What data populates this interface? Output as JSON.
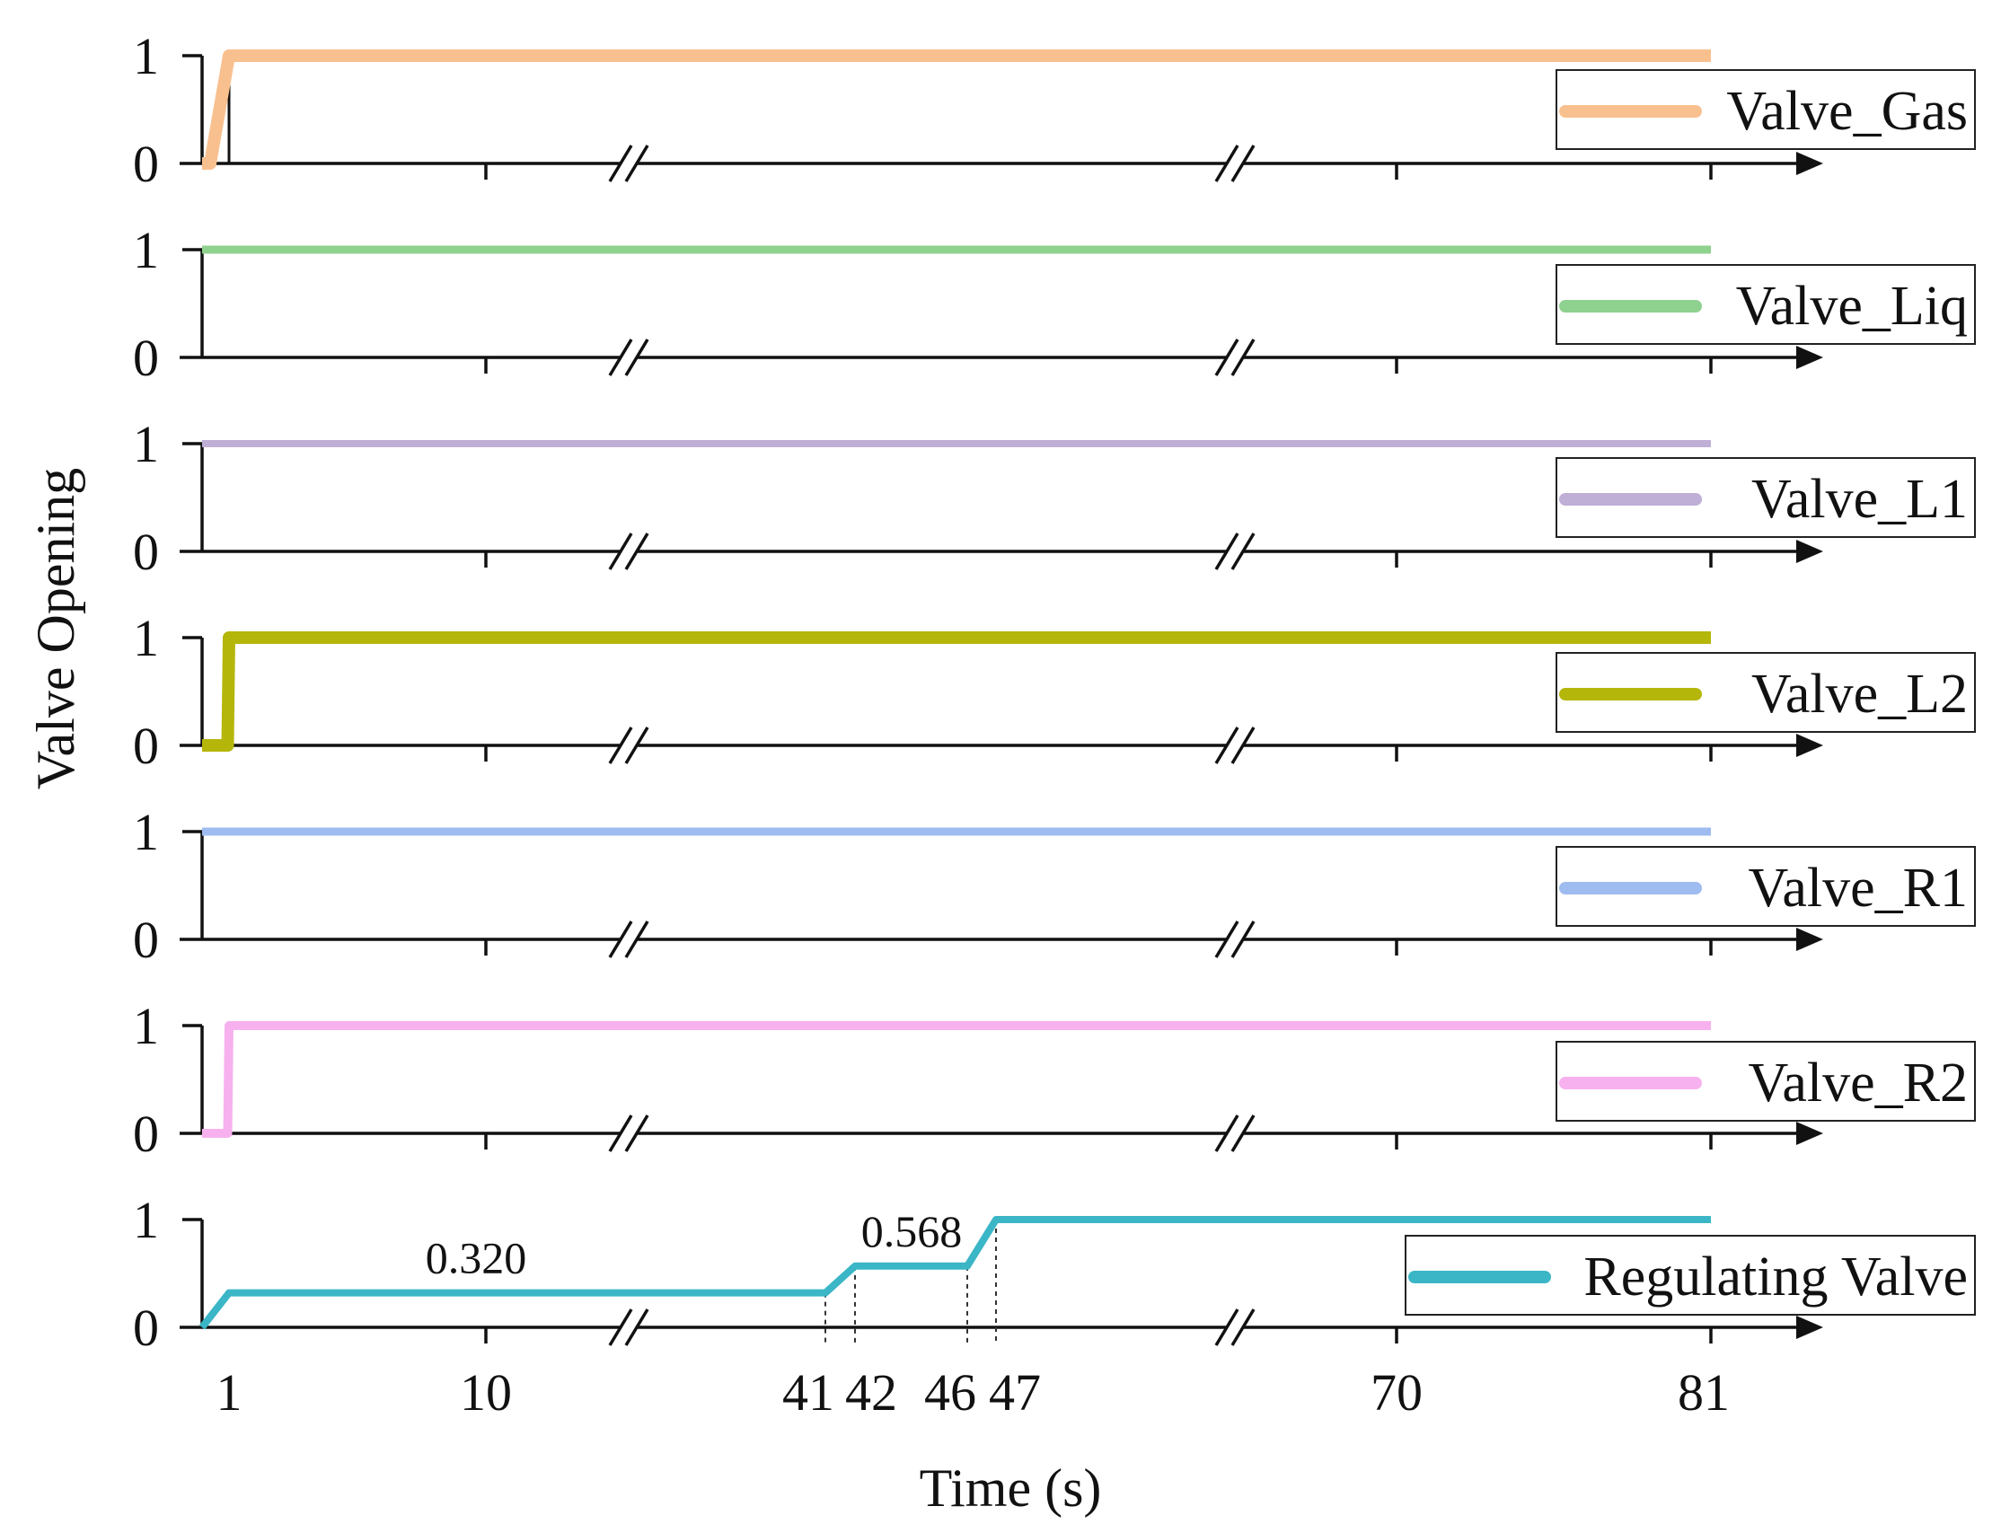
{
  "chart_data": {
    "type": "line",
    "ylabel": "Valve Opening",
    "xlabel": "Time (s)",
    "x_tick_labels": [
      "1",
      "10",
      "41",
      "42",
      "46",
      "47",
      "70",
      "81"
    ],
    "y_tick_labels": [
      "0",
      "1"
    ],
    "ylim": [
      0,
      1
    ],
    "xlim": [
      0,
      81
    ],
    "axis_breaks": [
      [
        10,
        41
      ],
      [
        47,
        70
      ]
    ],
    "series": [
      {
        "name": "Valve_Gas",
        "color": "#f9c08f",
        "x": [
          0,
          0.3,
          1,
          81
        ],
        "values": [
          0,
          0,
          1,
          1
        ]
      },
      {
        "name": "Valve_Liq",
        "color": "#8fd18f",
        "x": [
          0,
          81
        ],
        "values": [
          1,
          1
        ]
      },
      {
        "name": "Valve_L1",
        "color": "#bfaed6",
        "x": [
          0,
          81
        ],
        "values": [
          1,
          1
        ]
      },
      {
        "name": "Valve_L2",
        "color": "#b5b60a",
        "x": [
          0,
          0.95,
          1,
          81
        ],
        "values": [
          0,
          0,
          1,
          1
        ]
      },
      {
        "name": "Valve_R1",
        "color": "#9ebcf0",
        "x": [
          0,
          81
        ],
        "values": [
          1,
          1
        ]
      },
      {
        "name": "Valve_R2",
        "color": "#f7b1ee",
        "x": [
          0,
          0.95,
          1,
          81
        ],
        "values": [
          0,
          0,
          1,
          1
        ]
      },
      {
        "name": "Regulating Valve",
        "color": "#3bb6c6",
        "x": [
          0,
          1,
          41,
          42,
          46,
          47,
          81
        ],
        "values": [
          0,
          0.32,
          0.32,
          0.568,
          0.568,
          1,
          1
        ]
      }
    ],
    "annotations": [
      {
        "text": "0.320",
        "x": 10,
        "y": 0.32
      },
      {
        "text": "0.568",
        "x": 44,
        "y": 0.568
      }
    ],
    "guide_lines_at_x": [
      41,
      42,
      46,
      47
    ]
  }
}
